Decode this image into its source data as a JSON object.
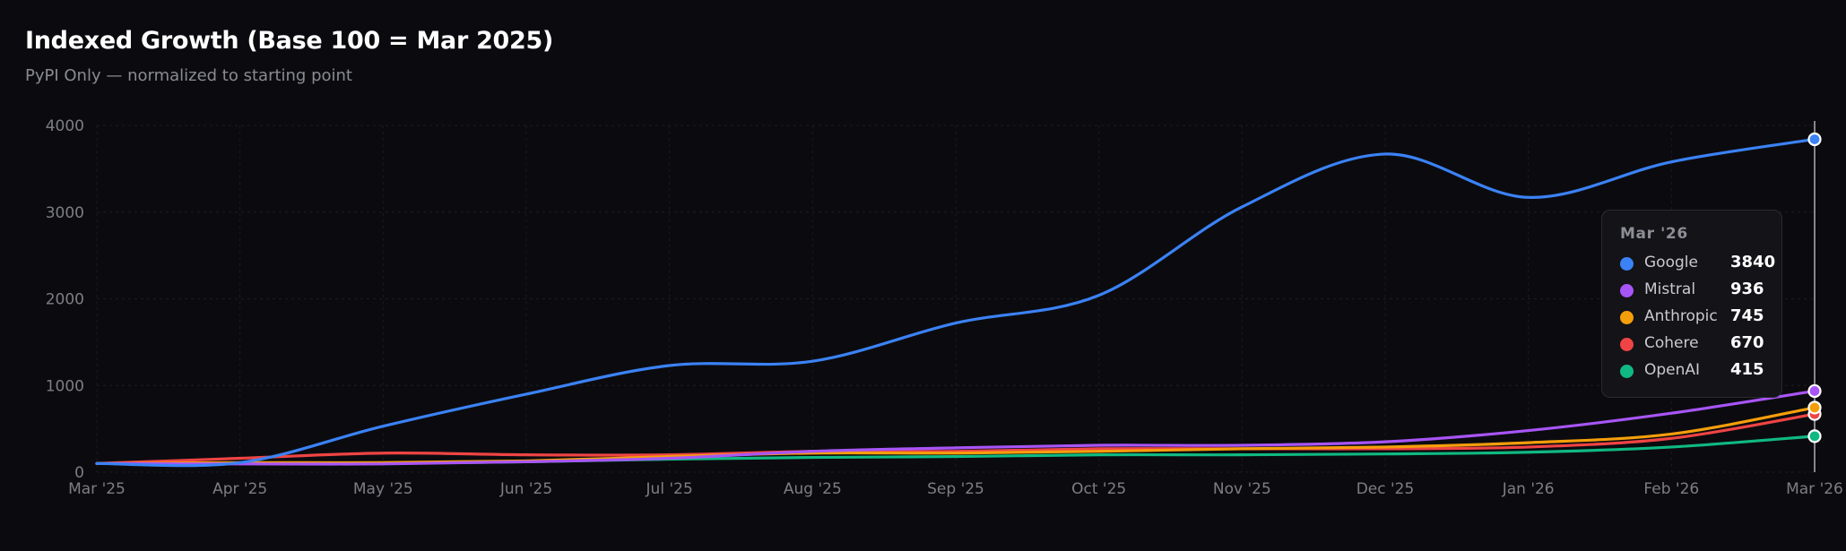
{
  "header": {
    "title": "Indexed Growth (Base 100 = Mar 2025)",
    "subtitle": "PyPI Only — normalized to starting point"
  },
  "tooltip": {
    "title": "Mar '26",
    "rows": [
      {
        "name": "Google",
        "value": "3840",
        "color": "#3b82f6"
      },
      {
        "name": "Mistral",
        "value": "936",
        "color": "#a855f7"
      },
      {
        "name": "Anthropic",
        "value": "745",
        "color": "#f59e0b"
      },
      {
        "name": "Cohere",
        "value": "670",
        "color": "#ef4444"
      },
      {
        "name": "OpenAI",
        "value": "415",
        "color": "#10b981"
      }
    ]
  },
  "chart_data": {
    "type": "line",
    "title": "Indexed Growth (Base 100 = Mar 2025)",
    "subtitle": "PyPI Only — normalized to starting point",
    "x": [
      "Mar '25",
      "Apr '25",
      "May '25",
      "Jun '25",
      "Jul '25",
      "Aug '25",
      "Sep '25",
      "Oct '25",
      "Nov '25",
      "Dec '25",
      "Jan '26",
      "Feb '26",
      "Mar '26"
    ],
    "ylim": [
      0,
      4000
    ],
    "yticks": [
      0,
      1000,
      2000,
      3000,
      4000
    ],
    "grid": true,
    "series": [
      {
        "name": "Google",
        "color": "#3b82f6",
        "values": [
          100,
          110,
          530,
          900,
          1230,
          1280,
          1720,
          2040,
          3060,
          3670,
          3170,
          3580,
          3840
        ]
      },
      {
        "name": "Mistral",
        "color": "#a855f7",
        "values": [
          100,
          95,
          95,
          120,
          160,
          240,
          280,
          310,
          310,
          350,
          480,
          680,
          936
        ]
      },
      {
        "name": "Anthropic",
        "color": "#f59e0b",
        "values": [
          100,
          110,
          110,
          130,
          180,
          220,
          220,
          240,
          270,
          290,
          340,
          440,
          745
        ]
      },
      {
        "name": "Cohere",
        "color": "#ef4444",
        "values": [
          100,
          160,
          220,
          200,
          200,
          240,
          240,
          270,
          270,
          270,
          290,
          390,
          670
        ]
      },
      {
        "name": "OpenAI",
        "color": "#10b981",
        "values": [
          100,
          100,
          100,
          120,
          150,
          170,
          180,
          200,
          200,
          210,
          230,
          290,
          415
        ]
      }
    ],
    "hover_index": 12
  }
}
